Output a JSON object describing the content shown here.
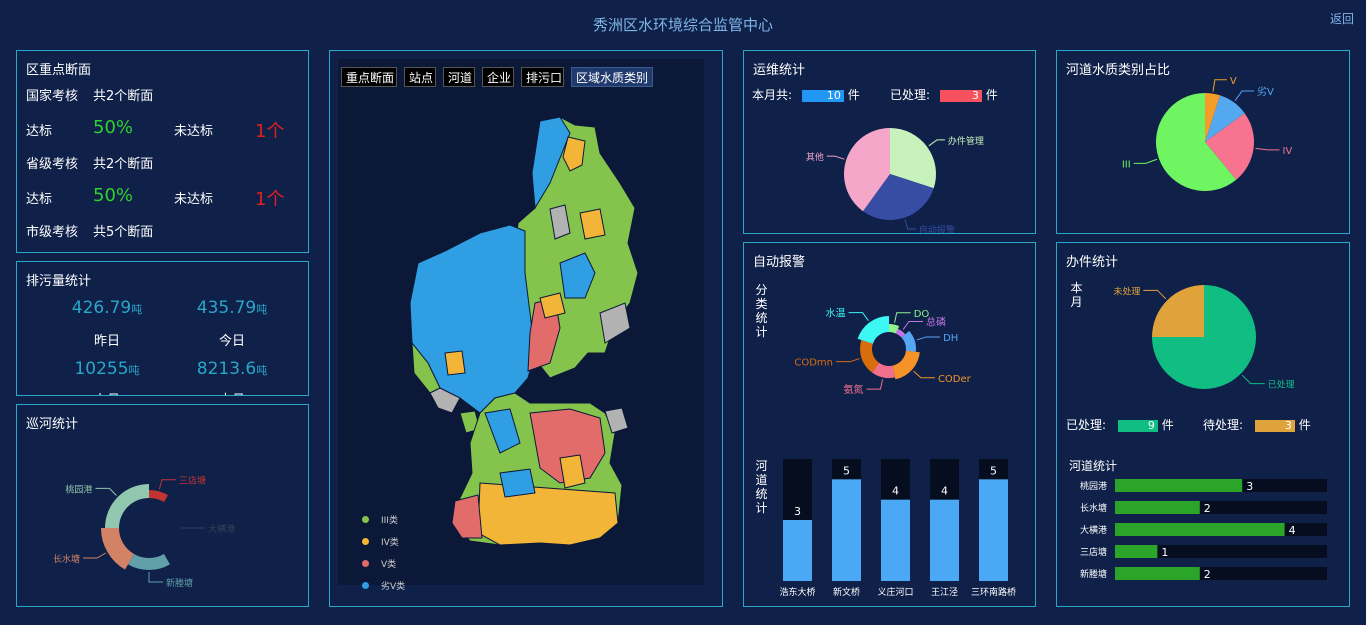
{
  "header": {
    "title": "秀洲区水环境综合监管中心",
    "back_label": "返回"
  },
  "sections": {
    "title": "区重点断面",
    "rows": [
      {
        "level": "国家考核",
        "total": "共2个断面",
        "pass_label": "达标",
        "pass_value": "50%",
        "fail_label": "未达标",
        "fail_value": "1个"
      },
      {
        "level": "省级考核",
        "total": "共2个断面",
        "pass_label": "达标",
        "pass_value": "50%",
        "fail_label": "未达标",
        "fail_value": "1个"
      },
      {
        "level": "市级考核",
        "total": "共5个断面"
      }
    ]
  },
  "discharge": {
    "title": "排污量统计",
    "items": [
      {
        "value": "426.79",
        "unit": "吨",
        "label": "昨日"
      },
      {
        "value": "435.79",
        "unit": "吨",
        "label": "今日"
      },
      {
        "value": "10255",
        "unit": "吨",
        "label": "上月"
      },
      {
        "value": "8213.6",
        "unit": "吨",
        "label": "本月"
      }
    ]
  },
  "patrol": {
    "title": "巡河统计",
    "segments": [
      {
        "name": "三店塘",
        "value": 1,
        "color": "#c23531"
      },
      {
        "name": "大横港",
        "value": 4,
        "color": "#2f4554"
      },
      {
        "name": "新塍塘",
        "value": 2,
        "color": "#61a0a8"
      },
      {
        "name": "长水塘",
        "value": 2,
        "color": "#d48265"
      },
      {
        "name": "桃园港",
        "value": 3,
        "color": "#91c7ae"
      }
    ]
  },
  "map": {
    "tabs": [
      "重点断面",
      "站点",
      "河道",
      "企业",
      "排污口",
      "区域水质类别"
    ],
    "active_tab": "区域水质类别",
    "legend": [
      {
        "label": "III类",
        "color": "#84c44d"
      },
      {
        "label": "IV类",
        "color": "#f3b538"
      },
      {
        "label": "V类",
        "color": "#e26c6a"
      },
      {
        "label": "劣V类",
        "color": "#2f9ee2"
      }
    ]
  },
  "ops": {
    "title": "运维统计",
    "month_label": "本月共:",
    "month_value": "10",
    "processed_label": "已处理:",
    "processed_value": "3",
    "unit": "件",
    "pie": [
      {
        "name": "办件管理",
        "value": 3,
        "color": "#c8f2bc"
      },
      {
        "name": "自动报警",
        "value": 3,
        "color": "#364da3"
      },
      {
        "name": "其他",
        "value": 4,
        "color": "#f5a7c9"
      }
    ]
  },
  "quality": {
    "title": "河道水质类别占比",
    "pie": [
      {
        "name": "V",
        "value": 5,
        "color": "#f59d28"
      },
      {
        "name": "劣V",
        "value": 10,
        "color": "#54a8f0"
      },
      {
        "name": "IV",
        "value": 24,
        "color": "#f7738f"
      },
      {
        "name": "III",
        "value": 61,
        "color": "#6ff562"
      }
    ]
  },
  "alarm": {
    "title": "自动报警",
    "category_label": "分类统计",
    "river_label": "河道统计",
    "donut": [
      {
        "name": "DO",
        "value": 1,
        "color": "#8ff38c"
      },
      {
        "name": "总磷",
        "value": 1,
        "color": "#c473e3"
      },
      {
        "name": "DH",
        "value": 2,
        "color": "#55a6f5"
      },
      {
        "name": "CODer",
        "value": 3,
        "color": "#f59228"
      },
      {
        "name": "氨氮",
        "value": 2,
        "color": "#f06f8c"
      },
      {
        "name": "CODmn",
        "value": 3,
        "color": "#d96d0c"
      },
      {
        "name": "水温",
        "value": 3,
        "color": "#3cf7f4"
      }
    ],
    "bars": [
      {
        "label": "浩东大桥",
        "value": 3
      },
      {
        "label": "新文桥",
        "value": 5
      },
      {
        "label": "义庄河口",
        "value": 4
      },
      {
        "label": "王江泾",
        "value": 4
      },
      {
        "label": "三环南路桥",
        "value": 5
      }
    ],
    "bar_max": 6
  },
  "cases": {
    "title": "办件统计",
    "month_label": "本月",
    "pie": [
      {
        "name": "已处理",
        "value": 9,
        "color": "#10be83"
      },
      {
        "name": "未处理",
        "value": 3,
        "color": "#e0a23a"
      }
    ],
    "processed_label": "已处理:",
    "processed_value": "9",
    "pending_label": "待处理:",
    "pending_value": "3",
    "unit": "件",
    "river_title": "河道统计",
    "rivers": [
      {
        "label": "桃园港",
        "value": 3
      },
      {
        "label": "长水塘",
        "value": 2
      },
      {
        "label": "大横港",
        "value": 4
      },
      {
        "label": "三店塘",
        "value": 1
      },
      {
        "label": "新塍塘",
        "value": 2
      }
    ],
    "river_max": 5
  }
}
